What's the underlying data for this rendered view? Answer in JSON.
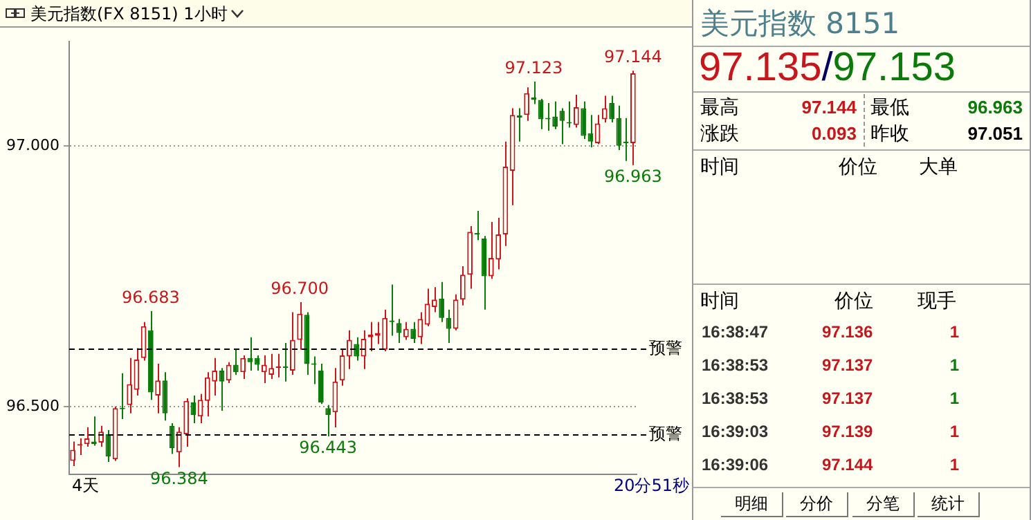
{
  "chart_data": [
    {
      "type": "candlestick",
      "title": "美元指数(FX 8151)  1小时",
      "categories": [
        null,
        null,
        null,
        null,
        null,
        null,
        null,
        null,
        null,
        null,
        null,
        null,
        null,
        null,
        null,
        null,
        null,
        null,
        null,
        null,
        null,
        null,
        null,
        null,
        null,
        null,
        null,
        null,
        null,
        null,
        null,
        null,
        null,
        null,
        null,
        null,
        null,
        null,
        null,
        null,
        null,
        null,
        null,
        null,
        null,
        null,
        null,
        null,
        null,
        null,
        null,
        null,
        null,
        null,
        null,
        null,
        null,
        null,
        null,
        null,
        null,
        null,
        null,
        null,
        null,
        null,
        null,
        null,
        null,
        null,
        null,
        null,
        null,
        null,
        null,
        null,
        null,
        null,
        null,
        null
      ],
      "ohlc": [
        [
          96.396,
          96.433,
          96.386,
          96.417
        ],
        [
          96.425,
          96.439,
          96.407,
          96.428
        ],
        [
          96.428,
          96.46,
          96.423,
          96.439
        ],
        [
          96.433,
          96.481,
          96.425,
          96.428
        ],
        [
          96.431,
          96.463,
          96.423,
          96.452
        ],
        [
          96.447,
          96.455,
          96.394,
          96.404
        ],
        [
          96.399,
          96.5,
          96.396,
          96.497
        ],
        [
          96.497,
          96.564,
          96.476,
          96.495
        ],
        [
          96.503,
          96.593,
          96.487,
          96.543
        ],
        [
          96.532,
          96.612,
          96.521,
          96.59
        ],
        [
          96.593,
          96.662,
          96.588,
          96.654
        ],
        [
          96.646,
          96.683,
          96.513,
          96.527
        ],
        [
          96.521,
          96.582,
          96.487,
          96.55
        ],
        [
          96.55,
          96.566,
          96.473,
          96.487
        ],
        [
          96.463,
          96.468,
          96.409,
          96.42
        ],
        [
          96.412,
          96.46,
          96.384,
          96.452
        ],
        [
          96.447,
          96.516,
          96.423,
          96.511
        ],
        [
          96.508,
          96.521,
          96.468,
          96.484
        ],
        [
          96.481,
          96.524,
          96.468,
          96.513
        ],
        [
          96.511,
          96.566,
          96.481,
          96.556
        ],
        [
          96.548,
          96.593,
          96.521,
          96.569
        ],
        [
          96.569,
          96.574,
          96.492,
          96.548
        ],
        [
          96.55,
          96.585,
          96.545,
          96.58
        ],
        [
          96.58,
          96.609,
          96.561,
          96.566
        ],
        [
          96.566,
          96.598,
          96.553,
          96.593
        ],
        [
          96.593,
          96.633,
          96.569,
          96.585
        ],
        [
          96.593,
          96.598,
          96.569,
          96.58
        ],
        [
          96.566,
          96.598,
          96.545,
          96.58
        ],
        [
          96.561,
          96.601,
          96.553,
          96.574
        ],
        [
          96.574,
          96.601,
          96.556,
          96.577
        ],
        [
          96.577,
          96.622,
          96.548,
          96.574
        ],
        [
          96.569,
          96.681,
          96.561,
          96.628
        ],
        [
          96.628,
          96.7,
          96.609,
          96.678
        ],
        [
          96.676,
          96.681,
          96.561,
          96.582
        ],
        [
          96.582,
          96.596,
          96.543,
          96.58
        ],
        [
          96.569,
          96.582,
          96.505,
          96.508
        ],
        [
          96.497,
          96.503,
          96.443,
          96.484
        ],
        [
          96.489,
          96.574,
          96.46,
          96.548
        ],
        [
          96.55,
          96.609,
          96.54,
          96.598
        ],
        [
          96.596,
          96.646,
          96.572,
          96.628
        ],
        [
          96.62,
          96.633,
          96.588,
          96.596
        ],
        [
          96.596,
          96.646,
          96.572,
          96.63
        ],
        [
          96.633,
          96.662,
          96.606,
          96.638
        ],
        [
          96.636,
          96.662,
          96.62,
          96.641
        ],
        [
          96.609,
          96.686,
          96.606,
          96.67
        ],
        [
          96.665,
          96.734,
          96.636,
          96.662
        ],
        [
          96.66,
          96.668,
          96.622,
          96.641
        ],
        [
          96.633,
          96.662,
          96.628,
          96.649
        ],
        [
          96.649,
          96.662,
          96.622,
          96.63
        ],
        [
          96.633,
          96.681,
          96.62,
          96.668
        ],
        [
          96.657,
          96.726,
          96.654,
          96.697
        ],
        [
          96.691,
          96.729,
          96.681,
          96.705
        ],
        [
          96.707,
          96.739,
          96.662,
          96.67
        ],
        [
          96.67,
          96.686,
          96.622,
          96.649
        ],
        [
          96.649,
          96.715,
          96.646,
          96.705
        ],
        [
          96.705,
          96.769,
          96.694,
          96.753
        ],
        [
          96.753,
          96.846,
          96.726,
          96.835
        ],
        [
          96.832,
          96.875,
          96.819,
          96.83
        ],
        [
          96.822,
          96.827,
          96.686,
          96.75
        ],
        [
          96.75,
          96.854,
          96.745,
          96.785
        ],
        [
          96.782,
          96.862,
          96.763,
          96.83
        ],
        [
          96.83,
          97.008,
          96.808,
          96.96
        ],
        [
          96.952,
          97.072,
          96.886,
          97.059
        ],
        [
          97.058,
          97.072,
          97.008,
          97.054
        ],
        [
          97.059,
          97.112,
          97.048,
          97.101
        ],
        [
          97.093,
          97.123,
          97.08,
          97.088
        ],
        [
          97.088,
          97.09,
          97.032,
          97.051
        ],
        [
          97.053,
          97.082,
          97.029,
          97.051
        ],
        [
          97.056,
          97.085,
          97.032,
          97.037
        ],
        [
          97.067,
          97.072,
          97.003,
          97.048
        ],
        [
          97.045,
          97.085,
          97.035,
          97.043
        ],
        [
          97.04,
          97.098,
          97.035,
          97.074
        ],
        [
          97.072,
          97.085,
          97.013,
          97.019
        ],
        [
          97.024,
          97.059,
          96.997,
          97.008
        ],
        [
          97.005,
          97.059,
          97.003,
          97.043
        ],
        [
          97.051,
          97.096,
          97.045,
          97.072
        ],
        [
          97.082,
          97.096,
          97.045,
          97.051
        ],
        [
          97.053,
          97.077,
          96.992,
          97.0
        ],
        [
          97.008,
          97.053,
          96.971,
          97.005
        ],
        [
          97.005,
          97.144,
          96.963,
          97.139
        ]
      ],
      "ylim": [
        96.37,
        97.2
      ],
      "yticks": [
        {
          "value": 96.5,
          "label": "96.500"
        },
        {
          "value": 97.0,
          "label": "97.000"
        }
      ],
      "grid": "y",
      "tick_labels": "y",
      "ref_lines": [
        {
          "axis": "y",
          "value": 96.612,
          "label": "预警",
          "line_style": "dashed"
        },
        {
          "axis": "y",
          "value": 96.447,
          "label": "预警",
          "line_style": "dashed"
        }
      ],
      "annotations": [
        {
          "text": "96.683",
          "y": 96.683
        },
        {
          "text": "96.384",
          "y": 96.384
        },
        {
          "text": "96.700",
          "y": 96.7
        },
        {
          "text": "96.443",
          "y": 96.443
        },
        {
          "text": "97.123",
          "y": 97.123
        },
        {
          "text": "97.144",
          "y": 97.144
        },
        {
          "text": "96.963",
          "y": 96.963
        },
        "4天",
        "20分51秒"
      ]
    },
    {
      "type": "other",
      "annotations": [
        "美元指数 8151",
        "97.135",
        "/",
        "97.153",
        "最高",
        "97.144",
        "最低",
        "96.963",
        "涨跌",
        "0.093",
        "昨收",
        "97.051",
        "时间",
        "价位",
        "大单",
        "时间",
        "价位",
        "现手",
        "16:38:47",
        "97.136",
        "1",
        "16:38:53",
        "97.137",
        "1",
        "16:38:53",
        "97.137",
        "1",
        "16:39:03",
        "97.139",
        "1",
        "16:39:06",
        "97.144",
        "1",
        "明细",
        "分价",
        "分笔",
        "统计"
      ]
    }
  ]
}
